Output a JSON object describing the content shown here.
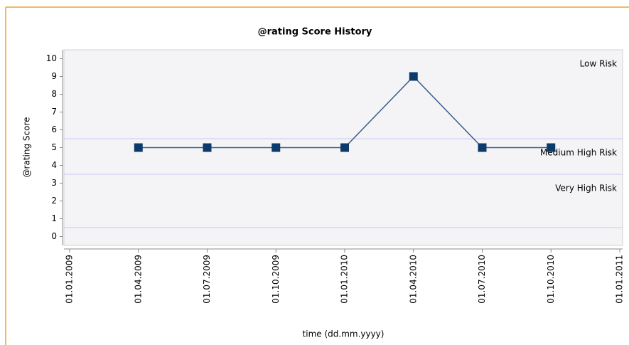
{
  "chart_data": {
    "type": "line",
    "title": "@rating Score History",
    "x_label": "time (dd.mm.yyyy)",
    "y_label": "@rating Score",
    "categories": [
      "01.01.2009",
      "01.04.2009",
      "01.07.2009",
      "01.10.2009",
      "01.01.2010",
      "01.04.2010",
      "01.07.2010",
      "01.10.2010",
      "01.01.2011"
    ],
    "series": [
      {
        "name": "@rating Score",
        "color": "#0b3a6b",
        "values": [
          null,
          5,
          5,
          5,
          5,
          9,
          5,
          5,
          null
        ]
      }
    ],
    "ylim": [
      -0.5,
      10.5
    ],
    "yticks": [
      0,
      1,
      2,
      3,
      4,
      5,
      6,
      7,
      8,
      9,
      10
    ],
    "risk_bands": [
      {
        "label": "Low Risk",
        "min": 5.5
      },
      {
        "label": "Medium High Risk",
        "min": 3.5
      },
      {
        "label": "Very High Risk",
        "min": 0.5
      }
    ],
    "band_line_color": "#c8c8f0"
  }
}
